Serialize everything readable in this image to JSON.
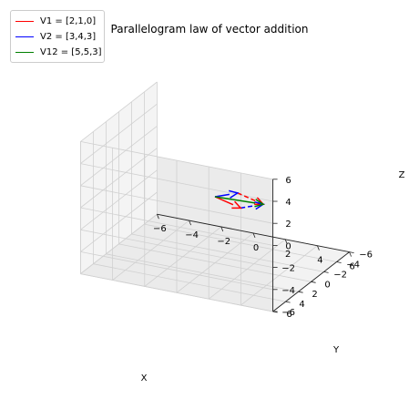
{
  "chart_data": {
    "type": "line",
    "title": "Parallelogram law of vector addition",
    "xlabel": "X",
    "ylabel": "Y",
    "zlabel": "Z",
    "xlim": [
      -6,
      6
    ],
    "ylim": [
      -6,
      6
    ],
    "zlim": [
      -6,
      6
    ],
    "x_ticks": [
      "−6",
      "−4",
      "−2",
      "0",
      "2",
      "4",
      "6"
    ],
    "y_ticks": [
      "−6",
      "−4",
      "−2",
      "0",
      "2",
      "4",
      "6"
    ],
    "z_ticks": [
      "−6",
      "−4",
      "−2",
      "0",
      "2",
      "4",
      "6"
    ],
    "grid": true,
    "legend_position": "top-left",
    "series": [
      {
        "name": "V1 = [2,1,0]",
        "color": "#ff0000",
        "start": [
          0,
          0,
          0
        ],
        "end": [
          2,
          1,
          0
        ],
        "style": "arrow"
      },
      {
        "name": "V2 = [3,4,3]",
        "color": "#0000ff",
        "start": [
          0,
          0,
          0
        ],
        "end": [
          3,
          4,
          3
        ],
        "style": "arrow"
      },
      {
        "name": "V12 = [5,5,3]",
        "color": "#008000",
        "start": [
          0,
          0,
          0
        ],
        "end": [
          5,
          5,
          3
        ],
        "style": "arrow"
      }
    ],
    "helpers": [
      {
        "color": "#ff0000",
        "start": [
          3,
          4,
          3
        ],
        "end": [
          5,
          5,
          3
        ],
        "style": "dashed-arrow"
      },
      {
        "color": "#0000ff",
        "start": [
          2,
          1,
          0
        ],
        "end": [
          5,
          5,
          3
        ],
        "style": "dashed-arrow"
      }
    ]
  }
}
